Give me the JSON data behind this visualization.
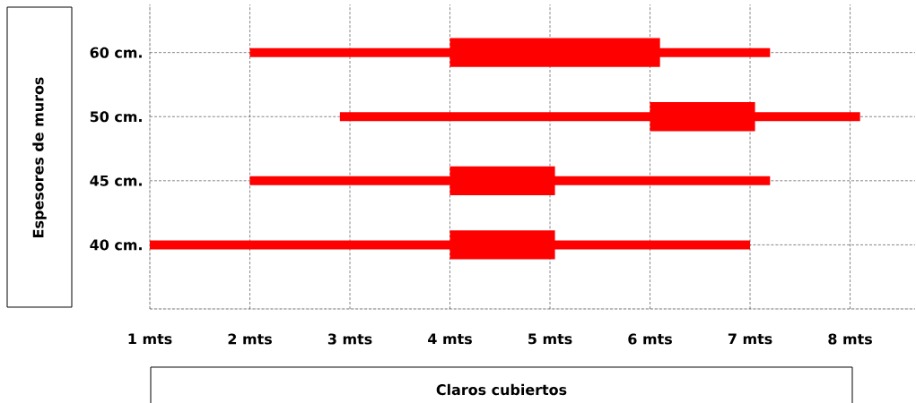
{
  "chart_data": {
    "type": "bar",
    "orientation": "horizontal",
    "xlabel": "Claros cubiertos",
    "ylabel": "Espesores de muros",
    "categories": [
      "60 cm.",
      "50 cm.",
      "45 cm.",
      "40 cm.",
      null
    ],
    "series": [
      {
        "color": "#ff0000",
        "base": [
          2,
          2.9,
          2,
          1,
          null
        ],
        "values": [
          5.2,
          5.2,
          5.2,
          6,
          null
        ]
      },
      {
        "color": "#ff0000",
        "base": [
          4,
          6,
          4,
          4,
          null
        ],
        "values": [
          2.1,
          1.05,
          1.05,
          1.05,
          null
        ]
      }
    ],
    "xlim": [
      1,
      8.65
    ],
    "xticks": [
      {
        "value": 1,
        "label": "1 mts"
      },
      {
        "value": 2,
        "label": "2 mts"
      },
      {
        "value": 3,
        "label": "3 mts"
      },
      {
        "value": 4,
        "label": "4 mts"
      },
      {
        "value": 5,
        "label": "5 mts"
      },
      {
        "value": 6,
        "label": "6 mts"
      },
      {
        "value": 7,
        "label": "7 mts"
      },
      {
        "value": 8,
        "label": "8 mts"
      }
    ],
    "grid": true
  }
}
